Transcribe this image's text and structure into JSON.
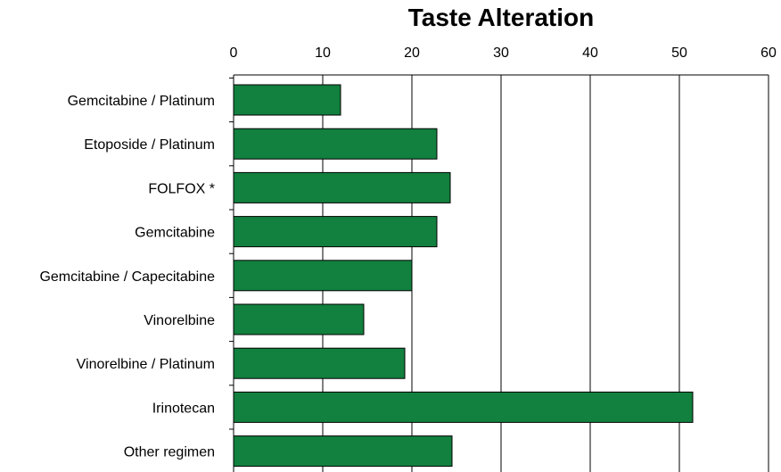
{
  "chart_data": {
    "type": "bar",
    "orientation": "horizontal",
    "title": "Taste Alteration",
    "xlabel": "",
    "ylabel": "",
    "categories": [
      "Gemcitabine / Platinum",
      "Etoposide / Platinum",
      "FOLFOX *",
      "Gemcitabine",
      "Gemcitabine / Capecitabine",
      "Vinorelbine",
      "Vinorelbine / Platinum",
      "Irinotecan",
      "Other regimen"
    ],
    "values": [
      12,
      22.8,
      24.3,
      22.8,
      20,
      14.6,
      19.2,
      51.5,
      24.5
    ],
    "xlim": [
      0,
      60
    ],
    "xticks": [
      "0",
      "10",
      "20",
      "30",
      "40",
      "50",
      "60"
    ],
    "axis_position": "top",
    "grid": true,
    "legend": "none",
    "bar_color": "#12803E",
    "bar_edge_color": "#000000"
  }
}
